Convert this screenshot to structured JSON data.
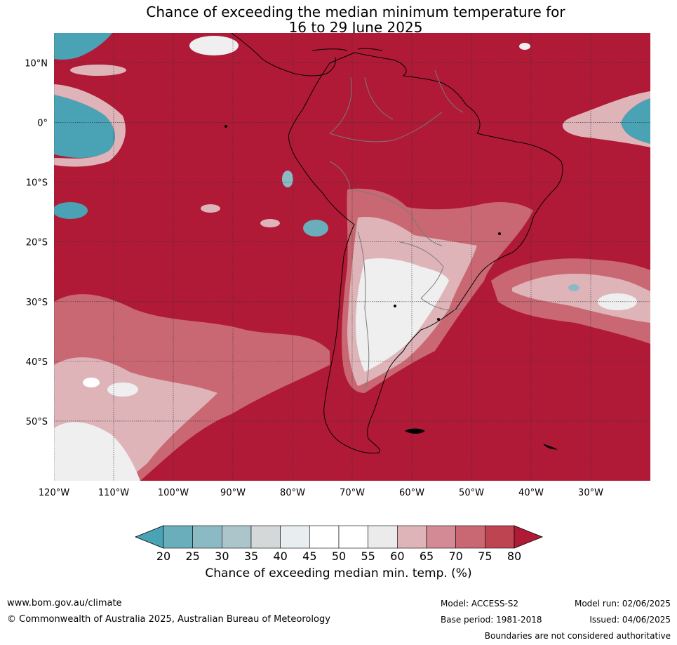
{
  "title": {
    "line1": "Chance of exceeding the median minimum temperature for",
    "line2": "16 to 29 June 2025"
  },
  "axes": {
    "lat_labels": [
      "10°N",
      "0°",
      "10°S",
      "20°S",
      "30°S",
      "40°S",
      "50°S"
    ],
    "lat_values": [
      10,
      0,
      -10,
      -20,
      -30,
      -40,
      -50
    ],
    "lon_labels": [
      "120°W",
      "110°W",
      "100°W",
      "90°W",
      "80°W",
      "70°W",
      "60°W",
      "50°W",
      "40°W",
      "30°W"
    ],
    "lon_values": [
      -120,
      -110,
      -100,
      -90,
      -80,
      -70,
      -60,
      -50,
      -40,
      -30
    ],
    "lon_range": [
      -120,
      -20
    ],
    "lat_range": [
      -60,
      15
    ]
  },
  "colorbar": {
    "title": "Chance of exceeding median min. temp. (%)",
    "ticks": [
      "20",
      "25",
      "30",
      "35",
      "40",
      "45",
      "50",
      "55",
      "60",
      "65",
      "70",
      "75",
      "80"
    ],
    "colors": [
      "#4aa3b4",
      "#6aaebb",
      "#8bbac5",
      "#abc5ca",
      "#d4d8d9",
      "#e8eef0",
      "#ffffff",
      "#ffffff",
      "#ebebeb",
      "#deb4b9",
      "#d48a94",
      "#c96872",
      "#bf4452",
      "#b01a36"
    ]
  },
  "colors": {
    "high": "#b01a36",
    "mid_high": "#c96872",
    "mid": "#deb4b9",
    "neutral": "#efefef",
    "low": "#4aa3b4",
    "coast": "#000000",
    "border": "#7a7a7a",
    "grid": "#333333"
  },
  "footer": {
    "url": "www.bom.gov.au/climate",
    "copyright": "© Commonwealth of Australia 2025, Australian Bureau of Meteorology",
    "model": "Model: ACCESS-S2",
    "base_period": "Base period: 1981-2018",
    "model_run": "Model run: 02/06/2025",
    "issued": "Issued: 04/06/2025",
    "disclaimer": "Boundaries are not considered authoritative"
  }
}
